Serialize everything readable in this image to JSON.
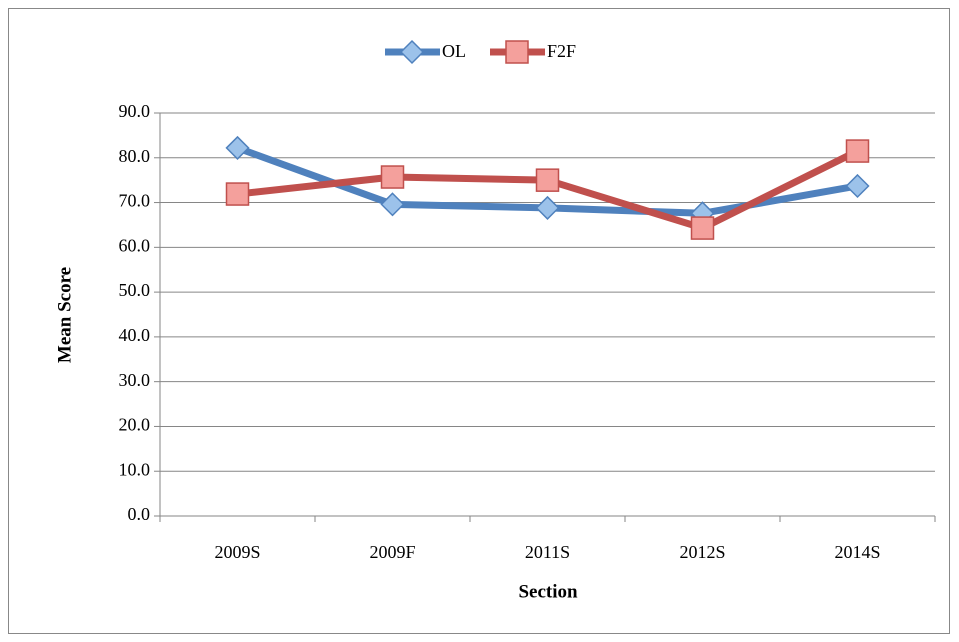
{
  "chart_data": {
    "type": "line",
    "x_label": "Section",
    "y_label": "Mean Score",
    "categories": [
      "2009S",
      "2009F",
      "2011S",
      "2012S",
      "2014S"
    ],
    "series": [
      {
        "name": "OL",
        "color": "#4f81bd",
        "marker_fill": "#9cc2ea",
        "marker": "diamond",
        "values": [
          82.2,
          69.6,
          68.8,
          67.6,
          73.7
        ]
      },
      {
        "name": "F2F",
        "color": "#c0504d",
        "marker_fill": "#f4a09c",
        "marker": "square",
        "values": [
          71.9,
          75.7,
          75.0,
          64.3,
          81.5
        ]
      }
    ],
    "ylim": [
      0,
      90
    ],
    "yticks": [
      {
        "value": 0,
        "label": "0.0"
      },
      {
        "value": 10,
        "label": "10.0"
      },
      {
        "value": 20,
        "label": "20.0"
      },
      {
        "value": 30,
        "label": "30.0"
      },
      {
        "value": 40,
        "label": "40.0"
      },
      {
        "value": 50,
        "label": "50.0"
      },
      {
        "value": 60,
        "label": "60.0"
      },
      {
        "value": 70,
        "label": "70.0"
      },
      {
        "value": 80,
        "label": "80.0"
      },
      {
        "value": 90,
        "label": "90.0"
      }
    ],
    "grid": true,
    "legend": "top"
  }
}
